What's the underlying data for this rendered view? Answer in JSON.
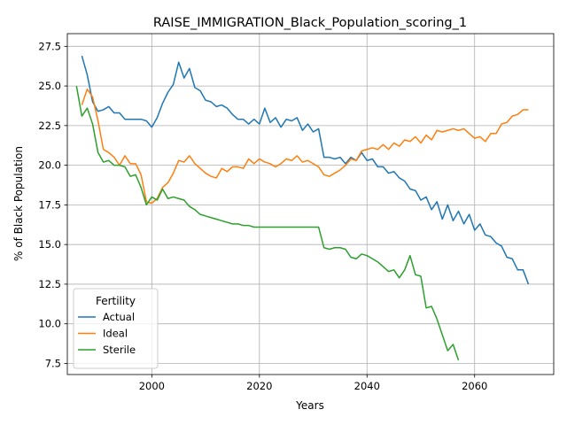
{
  "chart_data": {
    "type": "line",
    "title": "RAISE_IMMIGRATION_Black_Population_scoring_1",
    "xlabel": "Years",
    "ylabel": "% of Black Population",
    "xlim": [
      1984.3,
      2074.7
    ],
    "ylim": [
      6.8,
      28.3
    ],
    "x_ticks": [
      2000,
      2020,
      2040,
      2060
    ],
    "x_tick_labels": [
      "2000",
      "2020",
      "2040",
      "2060"
    ],
    "y_ticks": [
      7.5,
      10.0,
      12.5,
      15.0,
      17.5,
      20.0,
      22.5,
      25.0,
      27.5
    ],
    "y_tick_labels": [
      "7.5",
      "10.0",
      "12.5",
      "15.0",
      "17.5",
      "20.0",
      "22.5",
      "25.0",
      "27.5"
    ],
    "grid": true,
    "legend": {
      "title": "Fertility",
      "position": "lower-left"
    },
    "series": [
      {
        "name": "Actual",
        "color": "#1f77b4",
        "x": [
          1987,
          1988,
          1989,
          1990,
          1991,
          1992,
          1993,
          1994,
          1995,
          1996,
          1997,
          1998,
          1999,
          2000,
          2001,
          2002,
          2003,
          2004,
          2005,
          2006,
          2007,
          2008,
          2009,
          2010,
          2011,
          2012,
          2013,
          2014,
          2015,
          2016,
          2017,
          2018,
          2019,
          2020,
          2021,
          2022,
          2023,
          2024,
          2025,
          2026,
          2027,
          2028,
          2029,
          2030,
          2031,
          2032,
          2033,
          2034,
          2035,
          2036,
          2037,
          2038,
          2039,
          2040,
          2041,
          2042,
          2043,
          2044,
          2045,
          2046,
          2047,
          2048,
          2049,
          2050,
          2051,
          2052,
          2053,
          2054,
          2055,
          2056,
          2057,
          2058,
          2059,
          2060,
          2061,
          2062,
          2063,
          2064,
          2065,
          2066,
          2067,
          2068,
          2069,
          2070
        ],
        "values": [
          26.9,
          25.7,
          24.0,
          23.4,
          23.5,
          23.7,
          23.3,
          23.3,
          22.9,
          22.9,
          22.9,
          22.9,
          22.8,
          22.4,
          23.0,
          23.9,
          24.6,
          25.1,
          26.5,
          25.5,
          26.1,
          24.9,
          24.7,
          24.1,
          24.0,
          23.7,
          23.8,
          23.6,
          23.2,
          22.9,
          22.9,
          22.6,
          22.9,
          22.6,
          23.6,
          22.7,
          23.0,
          22.4,
          22.9,
          22.8,
          23.0,
          22.2,
          22.6,
          22.1,
          22.3,
          20.5,
          20.5,
          20.4,
          20.5,
          20.1,
          20.5,
          20.3,
          20.8,
          20.3,
          20.4,
          19.9,
          19.9,
          19.5,
          19.6,
          19.2,
          19.0,
          18.5,
          18.4,
          17.8,
          18.0,
          17.2,
          17.7,
          16.6,
          17.5,
          16.5,
          17.1,
          16.3,
          16.9,
          15.9,
          16.3,
          15.6,
          15.5,
          15.1,
          14.9,
          14.2,
          14.1,
          13.4,
          13.4,
          12.5
        ]
      },
      {
        "name": "Ideal",
        "color": "#ff7f0e",
        "x": [
          1987,
          1988,
          1989,
          1990,
          1991,
          1992,
          1993,
          1994,
          1995,
          1996,
          1997,
          1998,
          1999,
          2000,
          2001,
          2002,
          2003,
          2004,
          2005,
          2006,
          2007,
          2008,
          2009,
          2010,
          2011,
          2012,
          2013,
          2014,
          2015,
          2016,
          2017,
          2018,
          2019,
          2020,
          2021,
          2022,
          2023,
          2024,
          2025,
          2026,
          2027,
          2028,
          2029,
          2030,
          2031,
          2032,
          2033,
          2034,
          2035,
          2036,
          2037,
          2038,
          2039,
          2040,
          2041,
          2042,
          2043,
          2044,
          2045,
          2046,
          2047,
          2048,
          2049,
          2050,
          2051,
          2052,
          2053,
          2054,
          2055,
          2056,
          2057,
          2058,
          2059,
          2060,
          2061,
          2062,
          2063,
          2064,
          2065,
          2066,
          2067,
          2068,
          2069,
          2070
        ],
        "values": [
          23.8,
          24.8,
          24.3,
          22.8,
          21.0,
          20.8,
          20.5,
          20.0,
          20.6,
          20.1,
          20.1,
          19.4,
          17.7,
          17.6,
          17.9,
          18.6,
          18.9,
          19.5,
          20.3,
          20.2,
          20.6,
          20.1,
          19.8,
          19.5,
          19.3,
          19.2,
          19.8,
          19.6,
          19.9,
          19.9,
          19.8,
          20.4,
          20.1,
          20.4,
          20.2,
          20.1,
          19.9,
          20.1,
          20.4,
          20.3,
          20.6,
          20.2,
          20.3,
          20.1,
          19.9,
          19.4,
          19.3,
          19.5,
          19.7,
          20.0,
          20.4,
          20.3,
          20.9,
          21.0,
          21.1,
          21.0,
          21.3,
          21.0,
          21.4,
          21.2,
          21.6,
          21.5,
          21.8,
          21.4,
          21.9,
          21.6,
          22.2,
          22.1,
          22.2,
          22.3,
          22.2,
          22.3,
          22.0,
          21.7,
          21.8,
          21.5,
          22.0,
          22.0,
          22.6,
          22.7,
          23.1,
          23.2,
          23.5,
          23.5
        ]
      },
      {
        "name": "Sterile",
        "color": "#2ca02c",
        "x": [
          1986,
          1987,
          1988,
          1989,
          1990,
          1991,
          1992,
          1993,
          1994,
          1995,
          1996,
          1997,
          1998,
          1999,
          2000,
          2001,
          2002,
          2003,
          2004,
          2005,
          2006,
          2007,
          2008,
          2009,
          2010,
          2011,
          2012,
          2013,
          2014,
          2015,
          2016,
          2017,
          2018,
          2019,
          2020,
          2021,
          2022,
          2023,
          2024,
          2025,
          2026,
          2027,
          2028,
          2029,
          2030,
          2031,
          2032,
          2033,
          2034,
          2035,
          2036,
          2037,
          2038,
          2039,
          2040,
          2041,
          2042,
          2043,
          2044,
          2045,
          2046,
          2047,
          2048,
          2049,
          2050,
          2051,
          2052,
          2053,
          2054,
          2055,
          2056,
          2057
        ],
        "values": [
          25.0,
          23.1,
          23.6,
          22.6,
          20.8,
          20.2,
          20.3,
          20.0,
          20.0,
          19.9,
          19.3,
          19.4,
          18.6,
          17.5,
          18.0,
          17.8,
          18.5,
          17.9,
          18.0,
          17.9,
          17.8,
          17.4,
          17.2,
          16.9,
          16.8,
          16.7,
          16.6,
          16.5,
          16.4,
          16.3,
          16.3,
          16.2,
          16.2,
          16.1,
          16.1,
          16.1,
          16.1,
          16.1,
          16.1,
          16.1,
          16.1,
          16.1,
          16.1,
          16.1,
          16.1,
          16.1,
          14.8,
          14.7,
          14.8,
          14.8,
          14.7,
          14.2,
          14.1,
          14.4,
          14.3,
          14.1,
          13.9,
          13.6,
          13.3,
          13.4,
          12.9,
          13.4,
          14.3,
          13.1,
          13.0,
          11.0,
          11.1,
          10.3,
          9.3,
          8.3,
          8.7,
          7.7
        ]
      }
    ]
  }
}
